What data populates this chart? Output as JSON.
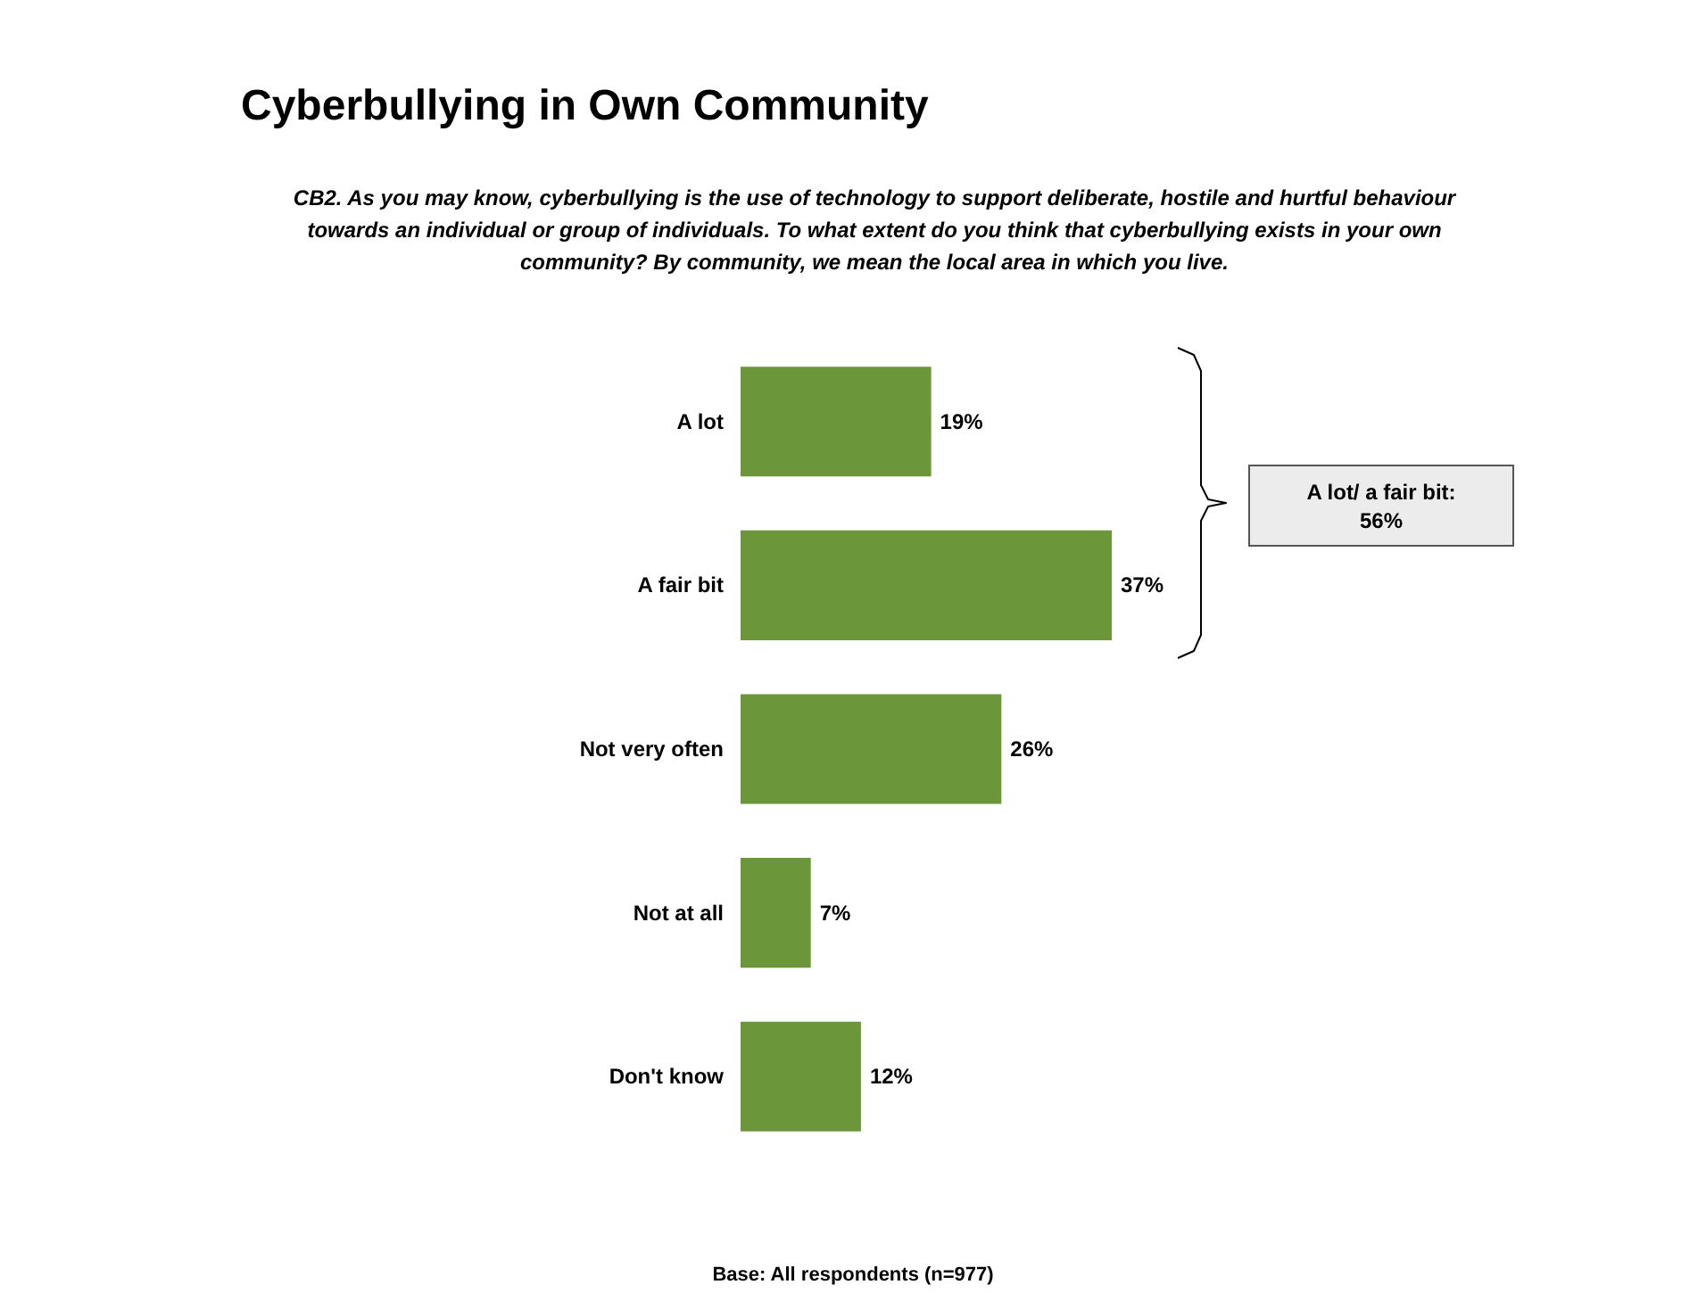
{
  "chart_data": {
    "type": "bar",
    "orientation": "horizontal",
    "title": "Cyberbullying in Own Community",
    "subtitle": "CB2. As you may know, cyberbullying is the use of technology to support deliberate, hostile and hurtful behaviour\ntowards an individual or group of individuals. To what extent do you think that cyberbullying exists in your own\ncommunity? By community, we mean the local area in which you live.",
    "categories": [
      "A lot",
      "A fair bit",
      "Not very often",
      "Not at all",
      "Don't know"
    ],
    "values": [
      19,
      37,
      26,
      7,
      12
    ],
    "value_labels": [
      "19%",
      "37%",
      "26%",
      "7%",
      "12%"
    ],
    "color": "#6b963a",
    "annotations": [
      "A lot/ a fair bit:\n56%",
      "Base: All respondents (n=977)"
    ],
    "grid": false
  }
}
